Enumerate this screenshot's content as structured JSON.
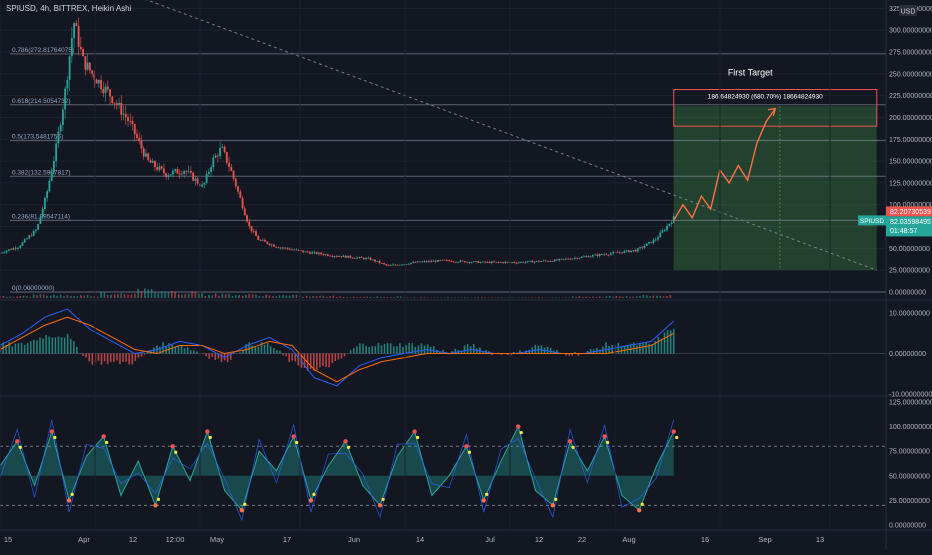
{
  "header": {
    "title": "SPIUSD, 4h, BITTREX, Heikin Ashi"
  },
  "currency": "USD",
  "annotations": {
    "target_label": "First Target",
    "target_info": "186.64824930 (680.70%) 18664824930",
    "symbol_tag": "SPIUSD",
    "price_red": "82.20730539",
    "price_green": "82.03598495",
    "countdown": "01:48:57"
  },
  "colors": {
    "background": "#131722",
    "up": "#26a69a",
    "down": "#ef5350",
    "target_zone": "#4caf50",
    "projection": "#ff7043",
    "fib_line": "#9ba3af",
    "macd": "#2962ff",
    "signal": "#ff6d00",
    "oscillator": "#26a69a"
  },
  "chart_data": [
    {
      "type": "candlestick",
      "panel": "price",
      "ylim": [
        0,
        330
      ],
      "yticks": [
        "325.00000000",
        "300.00000000",
        "275.00000000",
        "250.00000000",
        "225.00000000",
        "200.00000000",
        "175.00000000",
        "150.00000000",
        "125.00000000",
        "100.00000000",
        "75.00000000",
        "50.00000000",
        "25.00000000",
        "0.00000000"
      ],
      "ytick_values": [
        325,
        300,
        275,
        250,
        225,
        200,
        175,
        150,
        125,
        100,
        75,
        50,
        25,
        0
      ],
      "xticks": [
        "15",
        "Apr",
        "12",
        "12:00",
        "May",
        "17",
        "Jun",
        "14",
        "Jul",
        "12",
        "22",
        "Aug",
        "16",
        "Sep",
        "13"
      ],
      "fib_levels": [
        {
          "label": "0.786(272.81764075)",
          "value": 272.8
        },
        {
          "label": "0.618(214.5054732)",
          "value": 214.5
        },
        {
          "label": "0.5(173.5481756)",
          "value": 173.5
        },
        {
          "label": "0.382(132.5907817)",
          "value": 132.6
        },
        {
          "label": "0.236(81.99547114)",
          "value": 82.0
        },
        {
          "label": "0(0.00000000)",
          "value": 0
        }
      ],
      "price_path": [
        [
          0,
          45
        ],
        [
          2,
          52
        ],
        [
          4,
          72
        ],
        [
          5,
          110
        ],
        [
          6,
          160
        ],
        [
          7,
          225
        ],
        [
          8,
          310
        ],
        [
          9,
          265
        ],
        [
          10,
          250
        ],
        [
          12,
          225
        ],
        [
          14,
          195
        ],
        [
          16,
          150
        ],
        [
          18,
          135
        ],
        [
          20,
          140
        ],
        [
          22,
          120
        ],
        [
          23,
          150
        ],
        [
          24,
          165
        ],
        [
          25,
          140
        ],
        [
          26,
          108
        ],
        [
          27,
          75
        ],
        [
          28,
          60
        ],
        [
          30,
          52
        ],
        [
          33,
          46
        ],
        [
          36,
          42
        ],
        [
          40,
          38
        ],
        [
          42,
          30
        ],
        [
          45,
          34
        ],
        [
          48,
          36
        ],
        [
          52,
          34
        ],
        [
          56,
          34
        ],
        [
          60,
          36
        ],
        [
          63,
          40
        ],
        [
          66,
          44
        ],
        [
          69,
          48
        ],
        [
          71,
          60
        ],
        [
          72,
          72
        ],
        [
          73,
          85
        ]
      ],
      "target_zone": {
        "x_start": 73,
        "x_end": 95,
        "low": 25,
        "high": 213
      },
      "first_target": {
        "low": 190,
        "high": 232
      },
      "projection_path": [
        [
          73,
          82
        ],
        [
          74,
          100
        ],
        [
          75,
          85
        ],
        [
          76,
          110
        ],
        [
          77,
          95
        ],
        [
          78,
          140
        ],
        [
          79,
          125
        ],
        [
          80,
          145
        ],
        [
          81,
          128
        ],
        [
          82,
          170
        ],
        [
          83,
          195
        ],
        [
          84,
          210
        ]
      ],
      "trendline": {
        "from": [
          12,
          350
        ],
        "to": [
          95,
          25
        ]
      },
      "last_price": 82.04
    },
    {
      "type": "bar",
      "panel": "volume",
      "series": [
        {
          "values": [
            3,
            5,
            4,
            8,
            12,
            10,
            6,
            5,
            4,
            3,
            2,
            2,
            1,
            1,
            1,
            1,
            1,
            2,
            3,
            4
          ]
        }
      ]
    },
    {
      "type": "line",
      "panel": "macd",
      "ylim": [
        -10,
        12
      ],
      "yticks": [
        "10.00000000",
        "0.00000000",
        "-10.00000000"
      ],
      "ytick_values": [
        10,
        0,
        -10
      ],
      "series": [
        {
          "values": [
            2,
            5,
            9,
            11,
            6,
            3,
            0,
            1,
            3,
            2,
            -1,
            2,
            4,
            1,
            -6,
            -8,
            -3,
            -1,
            0,
            1,
            0,
            1,
            0,
            0,
            1,
            0,
            0,
            1,
            2,
            3,
            8
          ]
        },
        {
          "values": [
            1,
            4,
            7,
            9,
            7,
            4,
            1,
            0,
            2,
            2,
            0,
            1,
            3,
            2,
            -4,
            -7,
            -4,
            -2,
            -1,
            0,
            0,
            0,
            0,
            0,
            0,
            0,
            0,
            0,
            1,
            2,
            5
          ]
        }
      ]
    },
    {
      "type": "line",
      "panel": "oscillator",
      "ylim": [
        0,
        125
      ],
      "yticks": [
        "125.00000000",
        "100.00000000",
        "75.00000000",
        "50.00000000",
        "25.00000000",
        "0.00000000"
      ],
      "ytick_values": [
        125,
        100,
        75,
        50,
        25,
        0
      ],
      "reference_lines": [
        80,
        20
      ],
      "series": [
        {
          "values": [
            60,
            85,
            40,
            95,
            25,
            70,
            90,
            30,
            65,
            20,
            80,
            45,
            95,
            35,
            15,
            75,
            55,
            90,
            25,
            60,
            85,
            40,
            20,
            70,
            95,
            30,
            50,
            80,
            25,
            65,
            100,
            35,
            20,
            85,
            55,
            90,
            30,
            15,
            60,
            95
          ]
        }
      ]
    }
  ]
}
